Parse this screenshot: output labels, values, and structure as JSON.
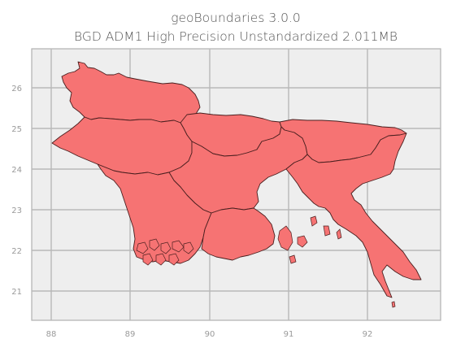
{
  "figure": {
    "title_line1": "geoBoundaries 3.0.0",
    "title_line2": "BGD ADM1 High Precision Unstandardized 2.011MB"
  },
  "chart_data": {
    "type": "map",
    "xlim": [
      87.6,
      92.9
    ],
    "ylim": [
      20.3,
      26.95
    ],
    "x_ticks": [
      88,
      89,
      90,
      91,
      92
    ],
    "y_ticks": [
      21,
      22,
      23,
      24,
      25,
      26
    ],
    "x_tick_labels": [
      "88",
      "89",
      "90",
      "91",
      "92"
    ],
    "y_tick_labels": [
      "21",
      "22",
      "23",
      "24",
      "25",
      "26"
    ],
    "grid": true,
    "fill_color": "#f67373",
    "edge_color": "#4a1f1f",
    "background_color": "#eeeeee"
  }
}
